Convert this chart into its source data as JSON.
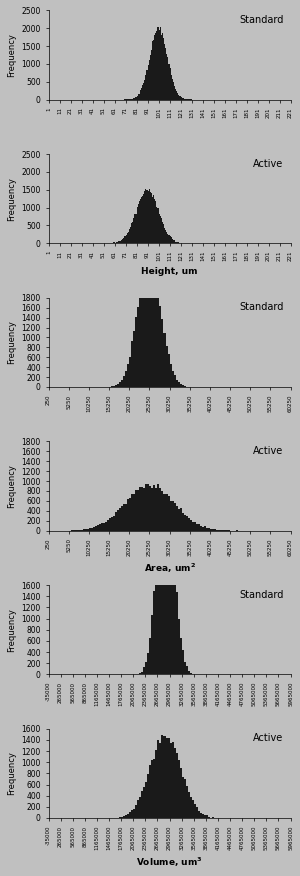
{
  "fig_width": 3.0,
  "fig_height": 8.76,
  "dpi": 100,
  "bg_color": "#c0c0c0",
  "bar_color": "#1a1a1a",
  "subplots": [
    {
      "label": "Standard",
      "type": "height",
      "mean": 101,
      "std": 8,
      "n": 40000,
      "ylim": [
        0,
        2500
      ],
      "yticks": [
        0,
        500,
        1000,
        1500,
        2000,
        2500
      ],
      "xlim": [
        1,
        221
      ],
      "xticks": [
        1,
        11,
        21,
        31,
        41,
        51,
        61,
        71,
        81,
        91,
        101,
        111,
        121,
        131,
        141,
        151,
        161,
        171,
        181,
        191,
        201,
        211,
        221
      ],
      "xlabel": "",
      "ylabel": "Frequency",
      "annotation": "Standard"
    },
    {
      "label": "Active",
      "type": "height",
      "mean": 91,
      "std": 10,
      "n": 38000,
      "ylim": [
        0,
        2500
      ],
      "yticks": [
        0,
        500,
        1000,
        1500,
        2000,
        2500
      ],
      "xlim": [
        1,
        221
      ],
      "xticks": [
        1,
        11,
        21,
        31,
        41,
        51,
        61,
        71,
        81,
        91,
        101,
        111,
        121,
        131,
        141,
        151,
        161,
        171,
        181,
        191,
        201,
        211,
        221
      ],
      "xlabel": "Height, um",
      "ylabel": "Frequency",
      "annotation": "Active"
    },
    {
      "label": "Standard",
      "type": "area",
      "mean": 25250,
      "std": 2800,
      "n": 38000,
      "ylim": [
        0,
        1800
      ],
      "yticks": [
        0,
        200,
        400,
        600,
        800,
        1000,
        1200,
        1400,
        1600,
        1800
      ],
      "xlim": [
        250,
        60250
      ],
      "xticks": [
        250,
        5250,
        10250,
        15250,
        20250,
        25250,
        30250,
        35250,
        40250,
        45250,
        50250,
        55250,
        60250
      ],
      "xlabel": "",
      "ylabel": "Frequency",
      "annotation": "Standard"
    },
    {
      "label": "Active",
      "type": "area",
      "mean": 25250,
      "std": 6000,
      "n": 28000,
      "ylim": [
        0,
        1800
      ],
      "yticks": [
        0,
        200,
        400,
        600,
        800,
        1000,
        1200,
        1400,
        1600,
        1800
      ],
      "xlim": [
        250,
        60250
      ],
      "xticks": [
        250,
        5250,
        10250,
        15250,
        20250,
        25250,
        30250,
        35250,
        40250,
        45250,
        50250,
        55250,
        60250
      ],
      "xlabel": "Area, um^2",
      "ylabel": "Frequency",
      "annotation": "Active"
    },
    {
      "label": "Standard",
      "type": "volume",
      "mean": 2865000,
      "std": 200000,
      "n": 38000,
      "ylim": [
        0,
        1600
      ],
      "yticks": [
        0,
        200,
        400,
        600,
        800,
        1000,
        1200,
        1400,
        1600
      ],
      "xlim": [
        -35000,
        5965000
      ],
      "xticks": [
        -35000,
        265000,
        565000,
        865000,
        1165000,
        1465000,
        1765000,
        2065000,
        2365000,
        2665000,
        2965000,
        3265000,
        3565000,
        3865000,
        4165000,
        4465000,
        4765000,
        5065000,
        5365000,
        5665000,
        5965000
      ],
      "xlabel": "",
      "ylabel": "Frequency",
      "annotation": "Standard"
    },
    {
      "label": "Active",
      "type": "volume",
      "mean": 2865000,
      "std": 380000,
      "n": 28000,
      "ylim": [
        0,
        1600
      ],
      "yticks": [
        0,
        200,
        400,
        600,
        800,
        1000,
        1200,
        1400,
        1600
      ],
      "xlim": [
        -35000,
        5965000
      ],
      "xticks": [
        -35000,
        265000,
        565000,
        865000,
        1165000,
        1465000,
        1765000,
        2065000,
        2365000,
        2665000,
        2965000,
        3265000,
        3565000,
        3865000,
        4165000,
        4465000,
        4765000,
        5065000,
        5365000,
        5665000,
        5965000
      ],
      "xlabel": "Volume, um^3",
      "ylabel": "Frequency",
      "annotation": "Active"
    }
  ]
}
